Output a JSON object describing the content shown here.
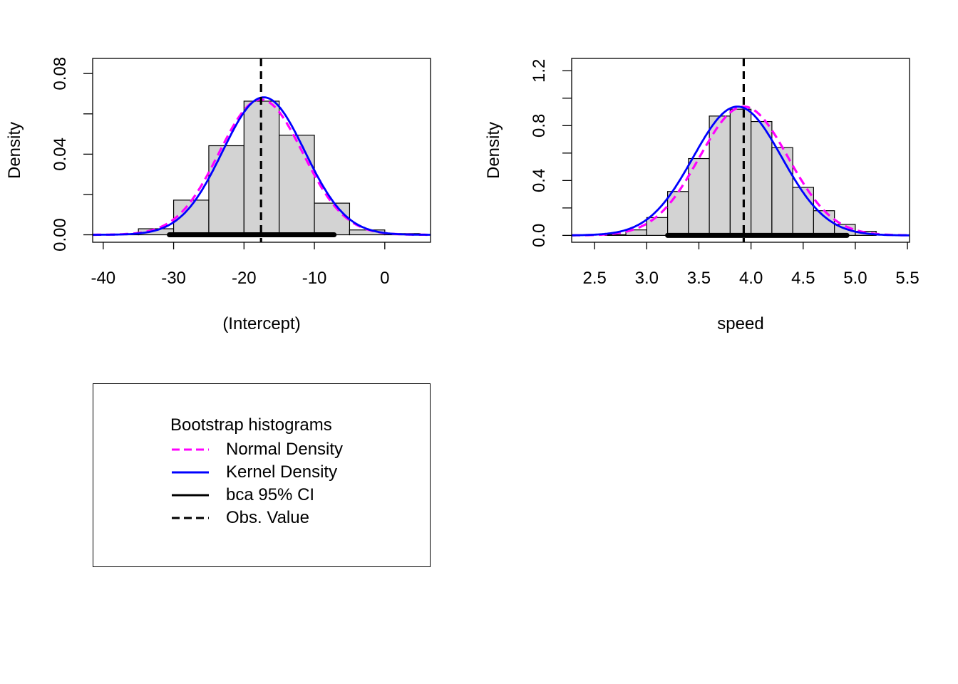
{
  "chart_data": [
    {
      "type": "histogram",
      "xlabel": "(Intercept)",
      "ylabel": "Density",
      "xlim": [
        -41.5,
        6.5
      ],
      "ylim": [
        -0.0037,
        0.0875
      ],
      "xticks": [
        -40,
        -30,
        -20,
        -10,
        0
      ],
      "yticks": [
        0.0,
        0.02,
        0.04,
        0.06,
        0.08
      ],
      "ytick_labels": [
        "0.00",
        "",
        "0.04",
        "",
        "0.08"
      ],
      "bins": [
        -40,
        -35,
        -30,
        -25,
        -20,
        -15,
        -10,
        -5,
        0,
        5
      ],
      "values": [
        0.0003,
        0.003,
        0.0172,
        0.0442,
        0.0663,
        0.0494,
        0.0157,
        0.0024,
        0.0006
      ],
      "normal": {
        "mean": -17.6,
        "sd": 5.95
      },
      "kernel": {
        "mean": -17.2,
        "sd": 5.85
      },
      "ci": [
        -30.6,
        -7.2
      ],
      "obs_value": -17.58
    },
    {
      "type": "histogram",
      "xlabel": "speed",
      "ylabel": "Density",
      "xlim": [
        2.28,
        5.52
      ],
      "ylim": [
        -0.05,
        1.29
      ],
      "xticks": [
        2.5,
        3.0,
        3.5,
        4.0,
        4.5,
        5.0,
        5.5
      ],
      "xtick_labels": [
        "2.5",
        "3.0",
        "3.5",
        "4.0",
        "4.5",
        "5.0",
        "5.5"
      ],
      "yticks": [
        0.0,
        0.2,
        0.4,
        0.6,
        0.8,
        1.0,
        1.2
      ],
      "ytick_labels": [
        "0.0",
        "",
        "0.4",
        "",
        "0.8",
        "",
        "1.2"
      ],
      "bins": [
        2.6,
        2.8,
        3.0,
        3.2,
        3.4,
        3.6,
        3.8,
        4.0,
        4.2,
        4.4,
        4.6,
        4.8,
        5.0,
        5.2
      ],
      "values": [
        0.005,
        0.04,
        0.13,
        0.32,
        0.56,
        0.87,
        0.92,
        0.83,
        0.64,
        0.35,
        0.18,
        0.08,
        0.03
      ],
      "normal": {
        "mean": 3.93,
        "sd": 0.425
      },
      "kernel": {
        "mean": 3.87,
        "sd": 0.425
      },
      "ci": [
        3.2,
        4.92
      ],
      "obs_value": 3.93
    }
  ],
  "legend": {
    "title": "Bootstrap histograms",
    "items": [
      {
        "label": "Normal Density",
        "color": "#ff00ff",
        "style": "dashed"
      },
      {
        "label": "Kernel Density",
        "color": "#0000ff",
        "style": "solid"
      },
      {
        "label": "bca 95% CI",
        "color": "#000000",
        "style": "solid"
      },
      {
        "label": "Obs. Value",
        "color": "#000000",
        "style": "dashed"
      }
    ]
  },
  "colors": {
    "bar_fill": "#d3d3d3",
    "bar_stroke": "#000000"
  }
}
